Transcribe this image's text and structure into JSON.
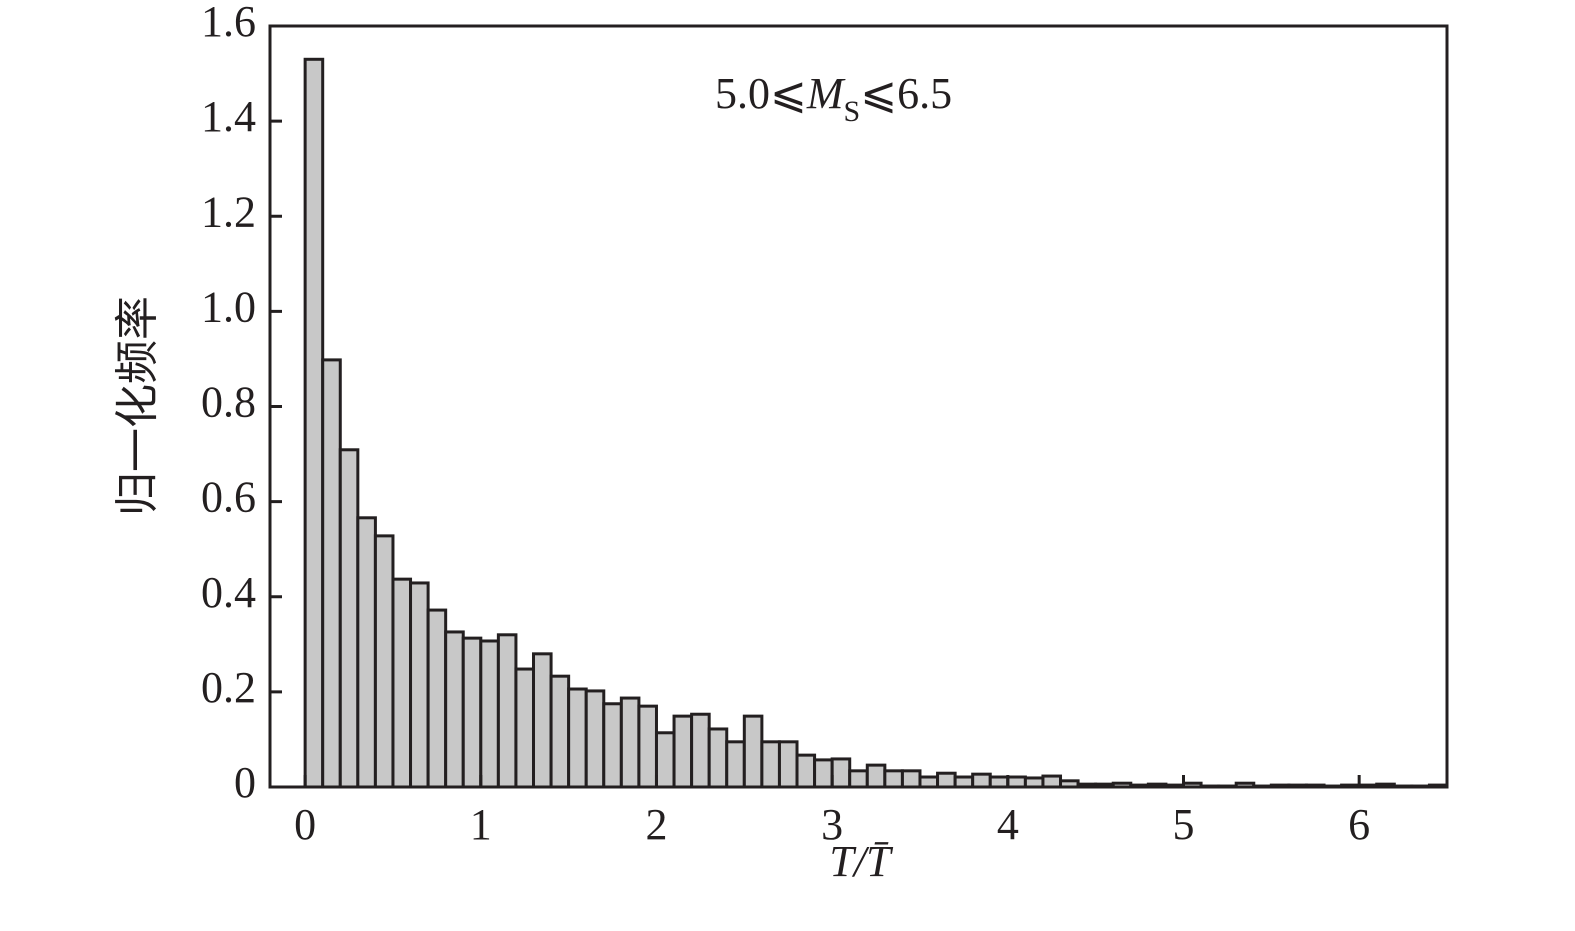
{
  "chart_data": {
    "type": "histogram",
    "annotation": {
      "parts": [
        "5.0⩽",
        "M",
        "S",
        "⩽6.5"
      ]
    },
    "x_label": "T/T̄",
    "y_label": "归一化频率",
    "bins": [
      0,
      0.1,
      0.2,
      0.3,
      0.4,
      0.5,
      0.6,
      0.7,
      0.8,
      0.9,
      1,
      1.1,
      1.2,
      1.3,
      1.4,
      1.5,
      1.6,
      1.7,
      1.8,
      1.9,
      2,
      2.1,
      2.2,
      2.3,
      2.4,
      2.5,
      2.6,
      2.7,
      2.8,
      2.9,
      3,
      3.1,
      3.2,
      3.3,
      3.4,
      3.5,
      3.6,
      3.7,
      3.8,
      3.9,
      4,
      4.1,
      4.2,
      4.3,
      4.4,
      4.5,
      4.6,
      4.7,
      4.8,
      4.9,
      5,
      5.1,
      5.2,
      5.3,
      5.4,
      5.5,
      5.6,
      5.7,
      5.8,
      5.9,
      6,
      6.1,
      6.2,
      6.3,
      6.4,
      6.5
    ],
    "counts": [
      1.53,
      0.898,
      0.709,
      0.566,
      0.528,
      0.437,
      0.429,
      0.372,
      0.326,
      0.313,
      0.307,
      0.32,
      0.248,
      0.28,
      0.233,
      0.206,
      0.202,
      0.175,
      0.187,
      0.17,
      0.114,
      0.149,
      0.153,
      0.122,
      0.095,
      0.149,
      0.095,
      0.095,
      0.067,
      0.057,
      0.059,
      0.034,
      0.046,
      0.034,
      0.034,
      0.021,
      0.029,
      0.021,
      0.027,
      0.021,
      0.021,
      0.019,
      0.023,
      0.013,
      0.006,
      0.006,
      0.008,
      0.004,
      0.006,
      0.004,
      0.008,
      0.002,
      0.002,
      0.008,
      0.002,
      0.004,
      0.004,
      0.004,
      0.002,
      0.004,
      0.004,
      0.006,
      0.002,
      0.002,
      0.004
    ],
    "color": "#c8c8c8",
    "xlim": [
      -0.2,
      6.5
    ],
    "xticks": [
      0,
      1,
      2,
      3,
      4,
      5,
      6
    ],
    "ylim": [
      0,
      1.6
    ],
    "yticks": [
      0,
      0.2,
      0.4,
      0.6,
      0.8,
      {
        "value": 1,
        "label": "1.0"
      },
      1.2,
      1.4,
      1.6
    ],
    "grid": false
  }
}
